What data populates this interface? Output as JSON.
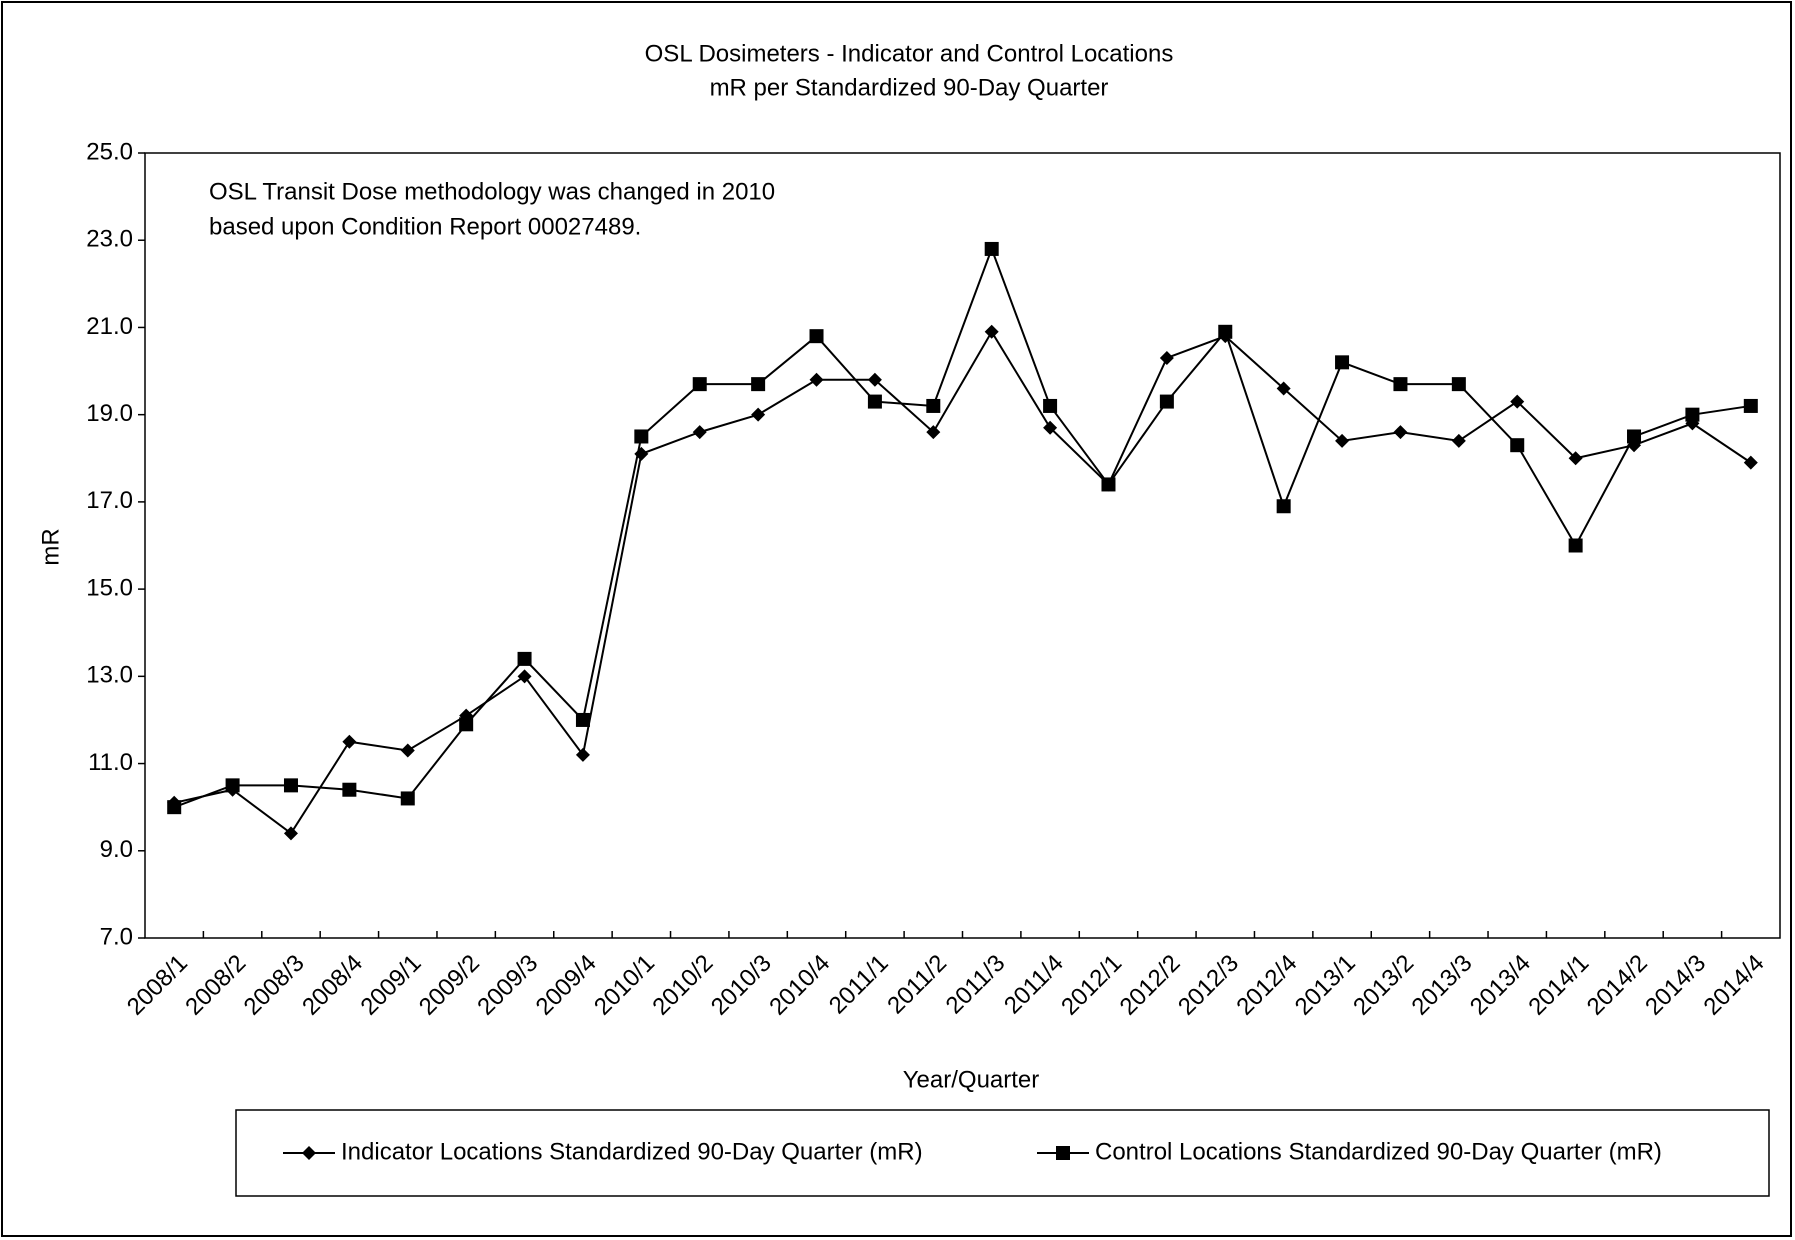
{
  "chart_data": {
    "type": "line",
    "title": "OSL Dosimeters - Indicator and Control Locations",
    "subtitle": "mR per Standardized 90-Day Quarter",
    "annotation": [
      "OSL Transit Dose methodology was changed in 2010",
      "based upon Condition Report 00027489."
    ],
    "x_label": "Year/Quarter",
    "y_label": "mR",
    "categories": [
      "2008/1",
      "2008/2",
      "2008/3",
      "2008/4",
      "2009/1",
      "2009/2",
      "2009/3",
      "2009/4",
      "2010/1",
      "2010/2",
      "2010/3",
      "2010/4",
      "2011/1",
      "2011/2",
      "2011/3",
      "2011/4",
      "2012/1",
      "2012/2",
      "2012/3",
      "2012/4",
      "2013/1",
      "2013/2",
      "2013/3",
      "2013/4",
      "2014/1",
      "2014/2",
      "2014/3",
      "2014/4"
    ],
    "series": [
      {
        "name": "Indicator Locations Standardized 90-Day Quarter (mR)",
        "color": "#000000",
        "marker": "diamond",
        "values": [
          10.1,
          10.4,
          9.4,
          11.5,
          11.3,
          12.1,
          13.0,
          11.2,
          18.1,
          18.6,
          19.0,
          19.8,
          19.8,
          18.6,
          20.9,
          18.7,
          17.4,
          20.3,
          20.8,
          19.6,
          18.4,
          18.6,
          18.4,
          19.3,
          18.0,
          18.3,
          18.8,
          17.9
        ]
      },
      {
        "name": "Control Locations Standardized 90-Day Quarter (mR)",
        "color": "#000000",
        "marker": "square",
        "values": [
          10.0,
          10.5,
          10.5,
          10.4,
          10.2,
          11.9,
          13.4,
          12.0,
          18.5,
          19.7,
          19.7,
          20.8,
          19.3,
          19.2,
          22.8,
          19.2,
          17.4,
          19.3,
          20.9,
          16.9,
          20.2,
          19.7,
          19.7,
          18.3,
          16.0,
          18.5,
          19.0,
          19.2
        ]
      }
    ],
    "ylim": [
      7,
      25
    ],
    "yticks": [
      {
        "value": 7,
        "label": "7.0"
      },
      {
        "value": 9,
        "label": "9.0"
      },
      {
        "value": 11,
        "label": "11.0"
      },
      {
        "value": 13,
        "label": "13.0"
      },
      {
        "value": 15,
        "label": "15.0"
      },
      {
        "value": 17,
        "label": "17.0"
      },
      {
        "value": 19,
        "label": "19.0"
      },
      {
        "value": 21,
        "label": "21.0"
      },
      {
        "value": 23,
        "label": "23.0"
      },
      {
        "value": 25,
        "label": "25.0"
      }
    ],
    "grid": false,
    "legend": "bottom"
  }
}
